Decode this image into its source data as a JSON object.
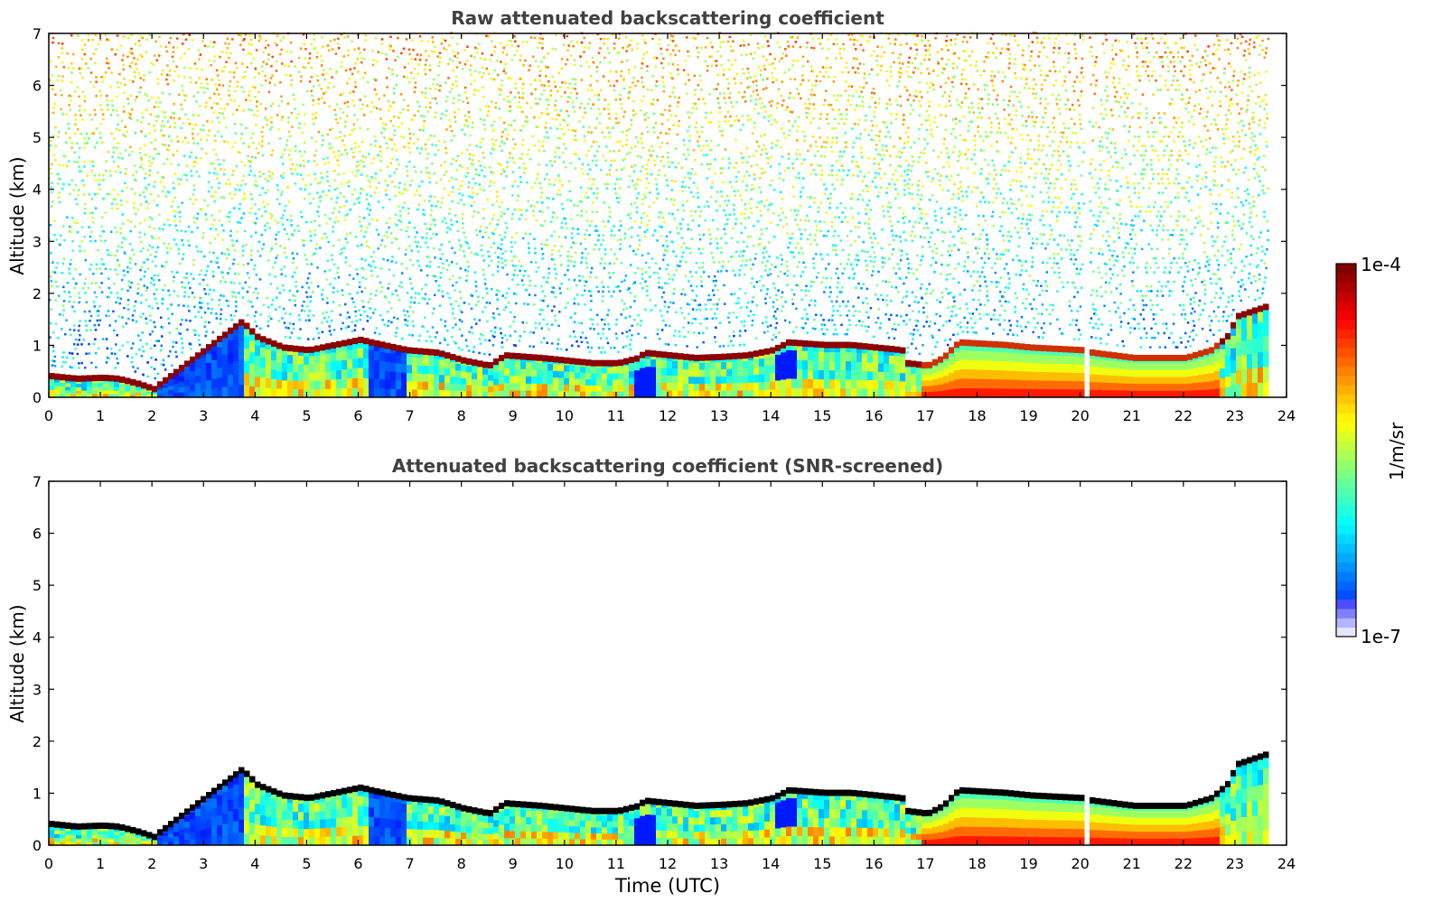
{
  "chart_data": [
    {
      "type": "heatmap",
      "title": "Raw attenuated backscattering coefficient",
      "xlabel": "",
      "ylabel": "Altitude (km)",
      "xlim": [
        0,
        24
      ],
      "ylim": [
        0,
        7
      ],
      "xticks": [
        "0",
        "1",
        "2",
        "3",
        "4",
        "5",
        "6",
        "7",
        "8",
        "9",
        "10",
        "11",
        "12",
        "13",
        "14",
        "15",
        "16",
        "17",
        "18",
        "19",
        "20",
        "21",
        "22",
        "23",
        "24"
      ],
      "yticks": [
        "0",
        "1",
        "2",
        "3",
        "4",
        "5",
        "6",
        "7"
      ],
      "noise": true,
      "data_end_hour": 23.6,
      "gaps_hours": [
        20.0,
        20.1
      ],
      "layer_top_km": [
        [
          0,
          0.45
        ],
        [
          0.5,
          0.4
        ],
        [
          1,
          0.42
        ],
        [
          1.3,
          0.4
        ],
        [
          1.7,
          0.3
        ],
        [
          2,
          0.2
        ],
        [
          2.05,
          0.25
        ],
        [
          3.7,
          1.5
        ],
        [
          4,
          1.2
        ],
        [
          4.5,
          1.0
        ],
        [
          5,
          0.95
        ],
        [
          5.5,
          1.05
        ],
        [
          6,
          1.15
        ],
        [
          6.2,
          1.1
        ],
        [
          6.9,
          0.95
        ],
        [
          7.5,
          0.9
        ],
        [
          8,
          0.75
        ],
        [
          8.5,
          0.65
        ],
        [
          8.8,
          0.85
        ],
        [
          9.5,
          0.8
        ],
        [
          10,
          0.75
        ],
        [
          10.5,
          0.7
        ],
        [
          11,
          0.7
        ],
        [
          11.4,
          0.8
        ],
        [
          11.5,
          0.9
        ],
        [
          12,
          0.85
        ],
        [
          12.5,
          0.8
        ],
        [
          13,
          0.82
        ],
        [
          13.5,
          0.85
        ],
        [
          14,
          0.95
        ],
        [
          14.3,
          1.1
        ],
        [
          15,
          1.05
        ],
        [
          15.5,
          1.05
        ],
        [
          16,
          1.0
        ],
        [
          16.5,
          0.95
        ],
        [
          16.6,
          0.7
        ],
        [
          17,
          0.65
        ],
        [
          17.3,
          0.8
        ],
        [
          17.6,
          1.1
        ],
        [
          18.5,
          1.05
        ],
        [
          19,
          1.0
        ],
        [
          20,
          0.95
        ],
        [
          20.2,
          0.9
        ],
        [
          21,
          0.8
        ],
        [
          22,
          0.8
        ],
        [
          22.5,
          0.95
        ],
        [
          22.8,
          1.2
        ],
        [
          23,
          1.6
        ],
        [
          23.6,
          1.8
        ]
      ],
      "colorbar": {
        "label": "1/m/sr",
        "max_label": "1e-4",
        "min_label": "1e-7",
        "colormap": "jet",
        "scale": "log"
      }
    },
    {
      "type": "heatmap",
      "title": "Attenuated backscattering coefficient (SNR-screened)",
      "xlabel": "Time (UTC)",
      "ylabel": "Altitude (km)",
      "xlim": [
        0,
        24
      ],
      "ylim": [
        0,
        7
      ],
      "xticks": [
        "0",
        "1",
        "2",
        "3",
        "4",
        "5",
        "6",
        "7",
        "8",
        "9",
        "10",
        "11",
        "12",
        "13",
        "14",
        "15",
        "16",
        "17",
        "18",
        "19",
        "20",
        "21",
        "22",
        "23",
        "24"
      ],
      "yticks": [
        "0",
        "1",
        "2",
        "3",
        "4",
        "5",
        "6",
        "7"
      ],
      "noise": false,
      "saturated_color": "#000000",
      "data_end_hour": 23.6,
      "gaps_hours": [
        20.0,
        20.1
      ]
    }
  ],
  "colors": {
    "title": "#404040",
    "axis": "#000000",
    "saturated": "#000000"
  }
}
